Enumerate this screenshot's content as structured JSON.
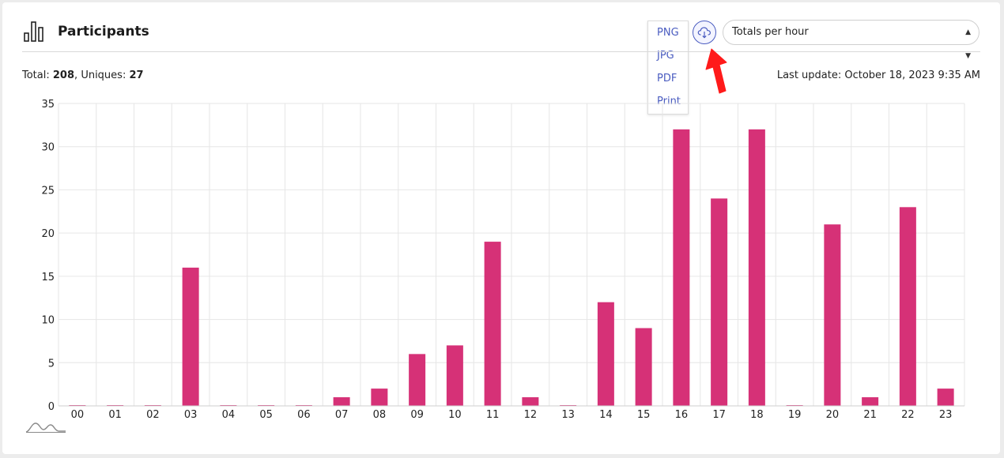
{
  "header": {
    "title": "Participants",
    "chart_icon": "bar-chart-icon"
  },
  "stats": {
    "total_label": "Total:",
    "total_value": "208",
    "uniques_label": "Uniques:",
    "uniques_value": "27",
    "separator": ","
  },
  "last_update": "Last update: October 18, 2023 9:35 AM",
  "controls": {
    "period_select": "Totals per hour",
    "download_icon": "cloud-download-icon",
    "export_menu": [
      "PNG",
      "JPG",
      "PDF",
      "Print"
    ]
  },
  "colors": {
    "bar": "#d63177",
    "accent": "#4a5cc0",
    "annotation_arrow": "#ff1a1a"
  },
  "chart_data": {
    "type": "bar",
    "categories": [
      "00",
      "01",
      "02",
      "03",
      "04",
      "05",
      "06",
      "07",
      "08",
      "09",
      "10",
      "11",
      "12",
      "13",
      "14",
      "15",
      "16",
      "17",
      "18",
      "19",
      "20",
      "21",
      "22",
      "23"
    ],
    "values": [
      0,
      0,
      0,
      16,
      0,
      0,
      0,
      1,
      2,
      6,
      7,
      19,
      1,
      0,
      12,
      9,
      32,
      24,
      32,
      0,
      21,
      1,
      23,
      2
    ],
    "ylim": [
      0,
      35
    ],
    "yticks": [
      0,
      5,
      10,
      15,
      20,
      25,
      30,
      35
    ],
    "grid": true,
    "title": "",
    "xlabel": "",
    "ylabel": ""
  }
}
